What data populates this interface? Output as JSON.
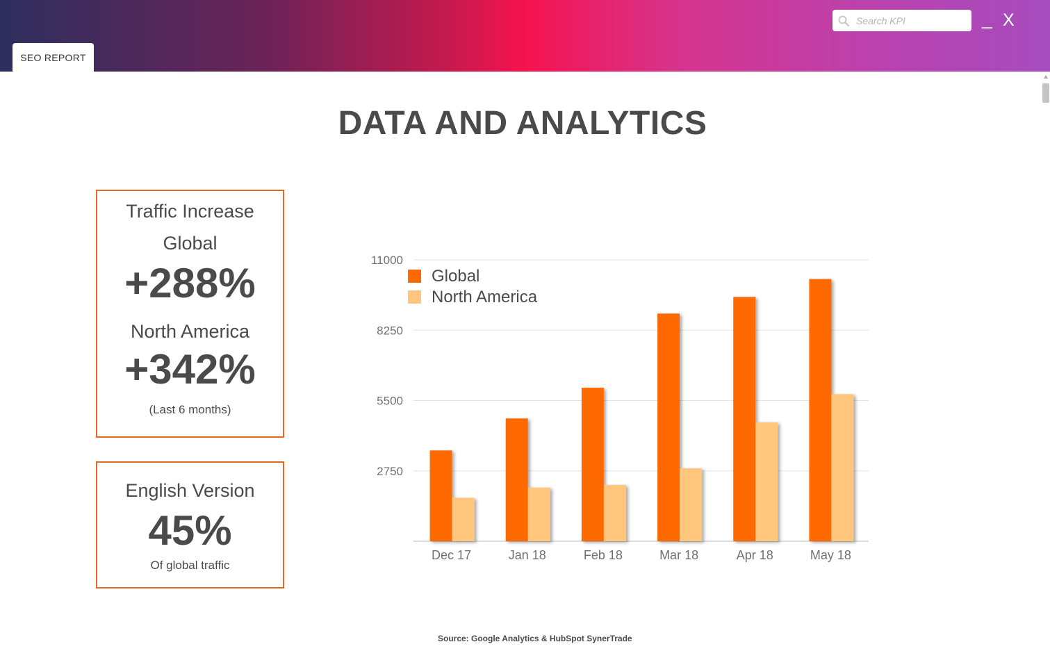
{
  "header": {
    "tab_label": "SEO REPORT",
    "search_placeholder": "Search KPI",
    "minimize_label": "_",
    "close_label": "X"
  },
  "page": {
    "title": "DATA AND ANALYTICS",
    "source": "Source: Google Analytics & HubSpot SynerTrade"
  },
  "cards": {
    "traffic": {
      "heading": "Traffic Increase",
      "global_label": "Global",
      "global_value": "+288%",
      "na_label": "North America",
      "na_value": "+342%",
      "note": "(Last 6 months)"
    },
    "english": {
      "heading": "English Version",
      "value": "45%",
      "note": "Of global traffic"
    }
  },
  "chart_data": {
    "type": "bar",
    "categories": [
      "Dec 17",
      "Jan 18",
      "Feb 18",
      "Mar 18",
      "Apr 18",
      "May 18"
    ],
    "series": [
      {
        "name": "Global",
        "color": "#ff6a00",
        "values": [
          3550,
          4800,
          6000,
          8900,
          9550,
          10250
        ]
      },
      {
        "name": "North America",
        "color": "#ffc77d",
        "values": [
          1700,
          2100,
          2200,
          2850,
          4650,
          5750
        ]
      }
    ],
    "yticks": [
      2750,
      5500,
      8250,
      11000
    ],
    "ylim": [
      0,
      11000
    ],
    "grid": true,
    "legend": "top-left",
    "title": "",
    "xlabel": "",
    "ylabel": ""
  }
}
